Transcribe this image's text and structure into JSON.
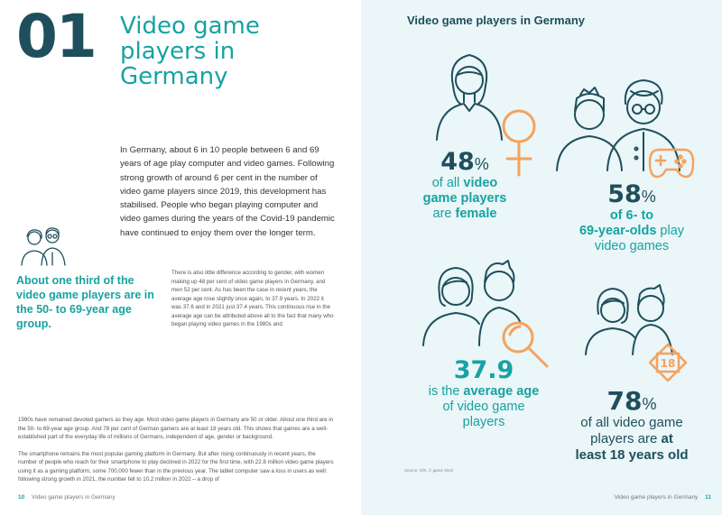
{
  "left": {
    "chapter_number": "01",
    "chapter_title": "Video game players in Germany",
    "intro": "In Germany, about 6 in 10 people between 6 and 69 years of age play computer and video games. Following strong growth of around 6 per cent in the number of video game players since 2019, this development has stabilised. People who began playing computer and video games during the years of the Covid-19 pandemic have continued to enjoy them over the longer term.",
    "callout": "About one third of the video game players are in the 50- to 69-year age group.",
    "body_1": "There is also little difference according to gender, with women making up 48 per cent of video game players in Germany, and men 52 per cent. As has been the case in recent years, the average age rose slightly once again, to 37.9 years. In 2022 it was 37.6 and in 2021 just 37.4 years. This continuous rise in the average age can be attributed above all to the fact that many who began playing video games in the 1980s and",
    "body_2a": "1990s have remained devoted gamers as they age. Most video game players in Germany are 50 or older. About one third are in the 50- to 69-year age group. And 78 per cent of German gamers are at least 18 years old. This shows that games are a well-established part of the everyday life of millions of Germans, independent of age, gender or background.",
    "body_2b": "The smartphone remains the most popular gaming platform in Germany. But after rising continuously in recent years, the number of people who reach for their smartphone to play declined in 2022 for the first time, with 22.8 million video game players using it as a gaming platform, some 700,000 fewer than in the previous year. The tablet computer saw a loss in users as well: following strong growth in 2021, the number fell to 10.2 million in 2022 – a drop of",
    "footer_page": "10",
    "footer_text": "Video game players in Germany"
  },
  "right": {
    "title": "Video game players in Germany",
    "stat_female": {
      "num": "48",
      "pct": "%",
      "l1a": "of all ",
      "l1b": "video",
      "l2": "game players",
      "l3a": "are ",
      "l3b": "female"
    },
    "stat_play": {
      "num": "58",
      "pct": "%",
      "l1": "of 6- to",
      "l2a": "69-year-olds",
      "l2b": " play",
      "l3": "video games"
    },
    "stat_age": {
      "num": "37.9",
      "l1a": "is the ",
      "l1b": "average age",
      "l2": "of video game",
      "l3": "players"
    },
    "stat_adult": {
      "num": "78",
      "pct": "%",
      "l1": "of all video game",
      "l2a": "players are ",
      "l2b": "at",
      "l3": "least 18 years old"
    },
    "badge_18": "18",
    "source": "Source: GfK, © game 2023",
    "footer_text": "Video game players in Germany",
    "footer_page": "11"
  },
  "colors": {
    "teal": "#17a2a3",
    "dark_teal": "#1f4f5c",
    "orange": "#f5a25d",
    "right_bg": "#eaf6f8"
  },
  "icons": [
    "woman-icon",
    "female-symbol-icon",
    "senior-couple-icon",
    "gamepad-icon",
    "couple-icon",
    "magnifier-icon",
    "family-icon",
    "age-18-badge-icon"
  ]
}
